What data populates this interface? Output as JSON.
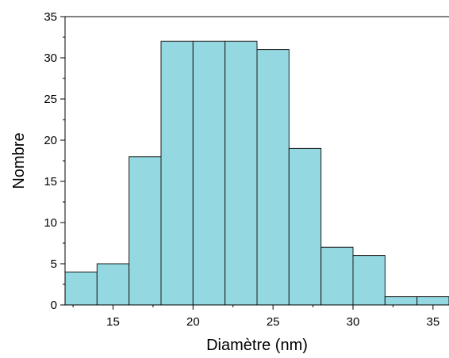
{
  "chart_data": {
    "type": "bar",
    "subtype": "histogram",
    "title": "",
    "xlabel": "Diamètre (nm)",
    "ylabel": "Nombre",
    "xlim": [
      12,
      36
    ],
    "ylim": [
      0,
      35
    ],
    "bin_width": 2,
    "bins": [
      {
        "x0": 12,
        "x1": 14,
        "value": 4
      },
      {
        "x0": 14,
        "x1": 16,
        "value": 5
      },
      {
        "x0": 16,
        "x1": 18,
        "value": 18
      },
      {
        "x0": 18,
        "x1": 20,
        "value": 32
      },
      {
        "x0": 20,
        "x1": 22,
        "value": 32
      },
      {
        "x0": 22,
        "x1": 24,
        "value": 32
      },
      {
        "x0": 24,
        "x1": 26,
        "value": 31
      },
      {
        "x0": 26,
        "x1": 28,
        "value": 19
      },
      {
        "x0": 28,
        "x1": 30,
        "value": 7
      },
      {
        "x0": 30,
        "x1": 32,
        "value": 6
      },
      {
        "x0": 32,
        "x1": 34,
        "value": 1
      },
      {
        "x0": 34,
        "x1": 36,
        "value": 1
      }
    ],
    "xticks": [
      15,
      20,
      25,
      30,
      35
    ],
    "yticks": [
      0,
      5,
      10,
      15,
      20,
      25,
      30,
      35
    ],
    "grid": false,
    "legend": "none",
    "colors": {
      "bar_fill": "#94d9e2",
      "bar_edge": "#1a1a1a",
      "axis": "#000000"
    }
  }
}
